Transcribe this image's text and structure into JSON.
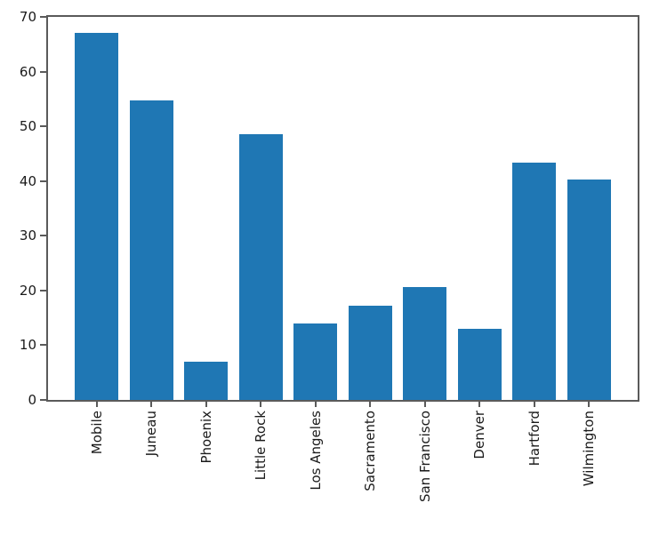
{
  "chart_data": {
    "type": "bar",
    "title": "",
    "xlabel": "",
    "ylabel": "",
    "categories": [
      "Mobile",
      "Juneau",
      "Phoenix",
      "Little Rock",
      "Los Angeles",
      "Sacramento",
      "San Francisco",
      "Denver",
      "Hartford",
      "Wilmington"
    ],
    "values": [
      67.0,
      54.7,
      7.0,
      48.5,
      14.0,
      17.2,
      20.7,
      13.0,
      43.4,
      40.2
    ],
    "ylim": [
      0,
      70
    ],
    "yticks": [
      0,
      10,
      20,
      30,
      40,
      50,
      60,
      70
    ],
    "x_tick_rotation": 90,
    "grid": false,
    "legend": null,
    "bar_color": "#1f77b4",
    "axis_color": "#5a5a5a",
    "text_color": "#1a1a1a"
  }
}
